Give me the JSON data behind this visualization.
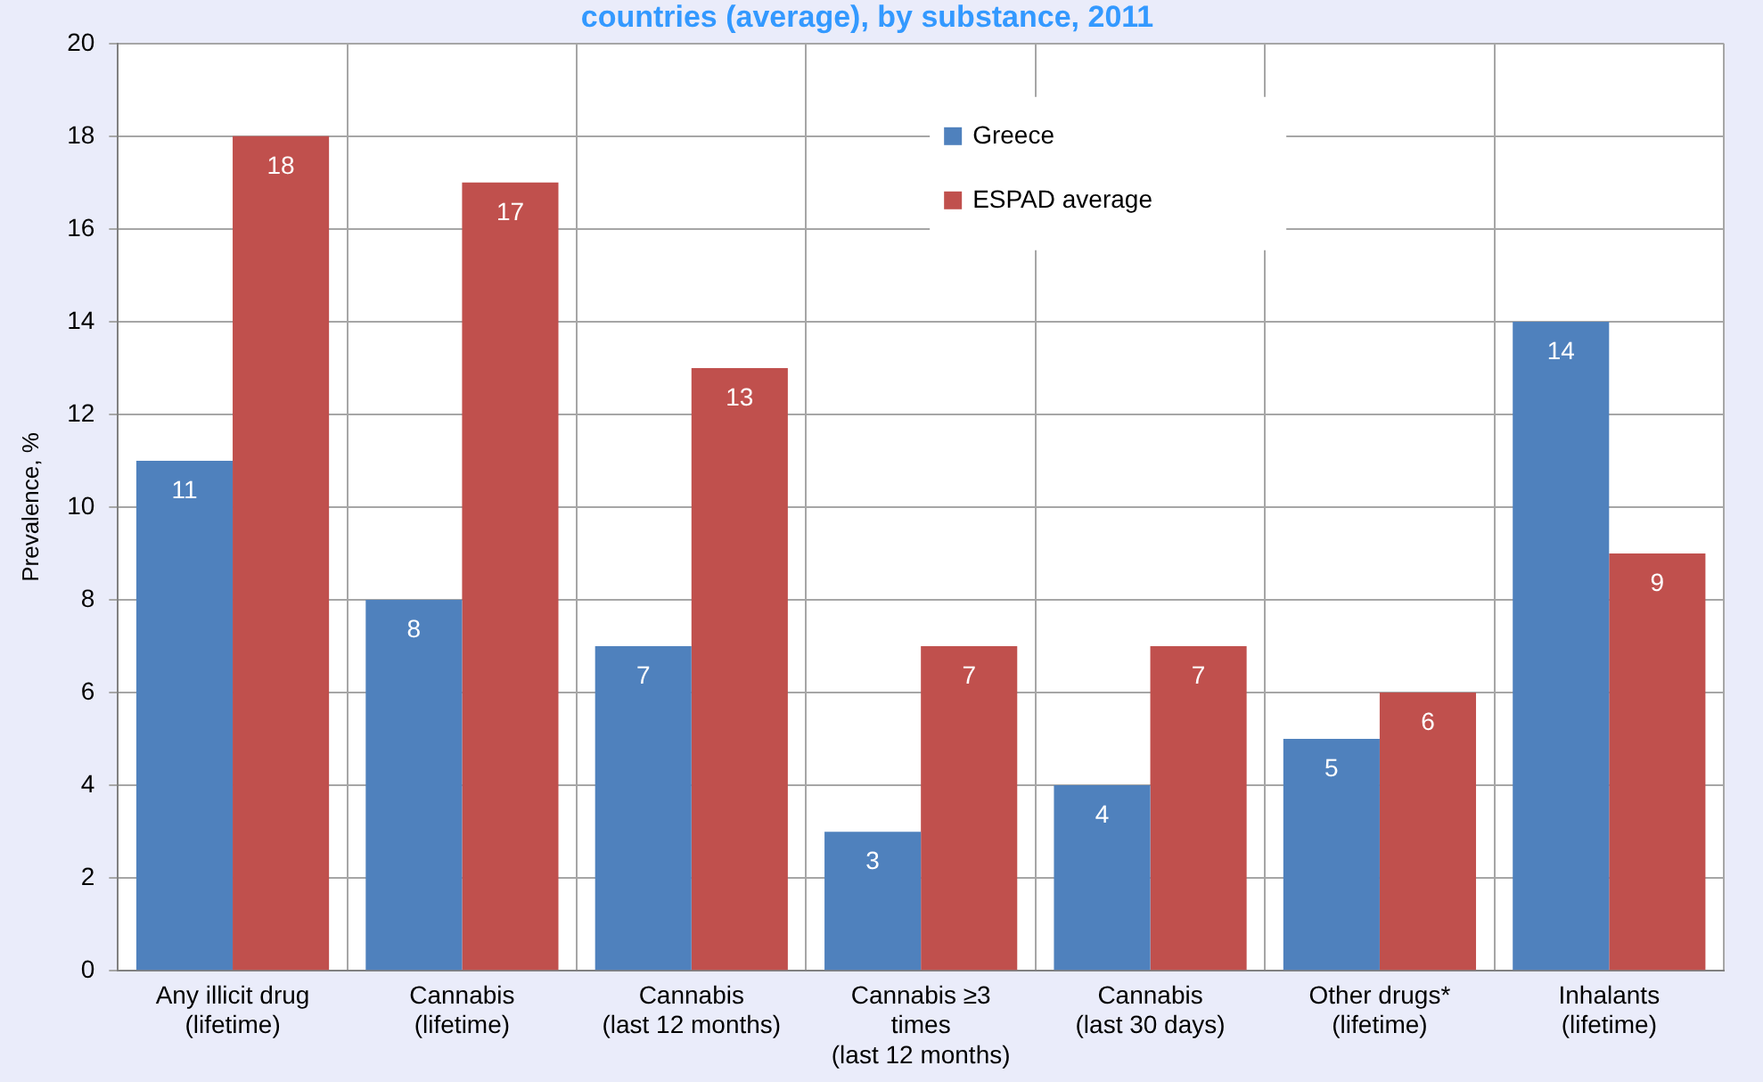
{
  "chart_data": {
    "type": "bar",
    "title": "countries (average), by substance, 2011",
    "ylabel": "Prevalence, %",
    "categories": [
      "Any illicit drug\n(lifetime)",
      "Cannabis\n(lifetime)",
      "Cannabis\n(last 12 months)",
      "Cannabis ≥3\ntimes\n(last 12 months)",
      "Cannabis\n(last 30 days)",
      "Other drugs*\n(lifetime)",
      "Inhalants\n(lifetime)"
    ],
    "series": [
      {
        "name": "Greece",
        "color": "#4f81bd",
        "values": [
          11,
          8,
          7,
          3,
          4,
          5,
          14
        ]
      },
      {
        "name": "ESPAD average",
        "color": "#c0504d",
        "values": [
          18,
          17,
          13,
          7,
          7,
          6,
          9
        ]
      }
    ],
    "ylim": [
      0,
      20
    ],
    "yticks": [
      0,
      2,
      4,
      6,
      8,
      10,
      12,
      14,
      16,
      18,
      20
    ],
    "grid": true,
    "legend": "top",
    "data_labels": true
  }
}
